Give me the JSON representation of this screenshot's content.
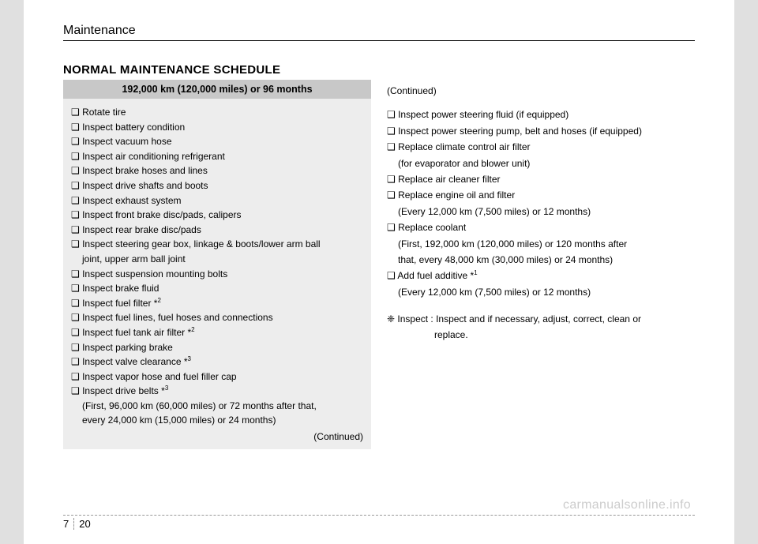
{
  "header": {
    "title": "Maintenance"
  },
  "section": {
    "title": "NORMAL MAINTENANCE SCHEDULE"
  },
  "left": {
    "interval": "192,000 km (120,000 miles) or 96 months",
    "items": [
      {
        "text": "❑ Rotate tire"
      },
      {
        "text": "❑ Inspect battery condition"
      },
      {
        "text": "❑ Inspect vacuum hose"
      },
      {
        "text": "❑ Inspect air conditioning refrigerant"
      },
      {
        "text": "❑ Inspect brake hoses and lines"
      },
      {
        "text": "❑ Inspect drive shafts and boots"
      },
      {
        "text": "❑ Inspect exhaust system"
      },
      {
        "text": "❑ Inspect front brake disc/pads, calipers"
      },
      {
        "text": " ❑ Inspect rear brake disc/pads"
      },
      {
        "text": "❑ Inspect steering gear box, linkage & boots/lower arm ball"
      },
      {
        "text": "joint, upper arm ball joint",
        "sub": true
      },
      {
        "text": "❑ Inspect suspension mounting bolts"
      },
      {
        "text": "❑ Inspect brake fluid"
      },
      {
        "text": "❑ Inspect fuel filter *",
        "sup": "2"
      },
      {
        "text": "❑ Inspect fuel lines, fuel hoses and connections"
      },
      {
        "text": "❑ Inspect fuel tank air filter *",
        "sup": "2"
      },
      {
        "text": "❑ Inspect parking brake"
      },
      {
        "text": "❑ Inspect valve clearance *",
        "sup": "3"
      },
      {
        "text": "❑ Inspect vapor hose and fuel filler cap"
      },
      {
        "text": "❑ Inspect drive belts *",
        "sup": "3"
      },
      {
        "text": "(First, 96,000 km (60,000 miles) or 72 months after that,",
        "sub": true
      },
      {
        "text": " every 24,000 km (15,000 miles) or 24 months)",
        "sub": true
      }
    ],
    "continued": "(Continued)"
  },
  "right": {
    "continued": "(Continued)",
    "items": [
      {
        "text": "❑ Inspect power steering fluid (if equipped)"
      },
      {
        "text": "❑ Inspect power steering pump, belt and hoses (if equipped)"
      },
      {
        "text": "❑ Replace climate control air filter"
      },
      {
        "text": "(for evaporator and blower unit)",
        "sub": true
      },
      {
        "text": "❑ Replace air cleaner filter"
      },
      {
        "text": "❑ Replace engine oil and filter"
      },
      {
        "text": "(Every 12,000 km (7,500 miles) or 12 months)",
        "sub": true
      },
      {
        "text": "❑ Replace coolant"
      },
      {
        "text": "(First, 192,000 km (120,000 miles) or 120 months after",
        "sub": true
      },
      {
        "text": "that, every 48,000 km (30,000 miles) or 24 months)",
        "sub": true
      },
      {
        "text": "❑ Add fuel additive *",
        "sup": "1"
      },
      {
        "text": "(Every 12,000 km (7,500 miles) or 12 months)",
        "sub": true
      }
    ],
    "note_line1": "❈ Inspect : Inspect and if necessary, adjust, correct, clean or",
    "note_line2": "replace."
  },
  "footer": {
    "chapter": "7",
    "page": "20"
  },
  "watermark": "carmanualsonline.info"
}
